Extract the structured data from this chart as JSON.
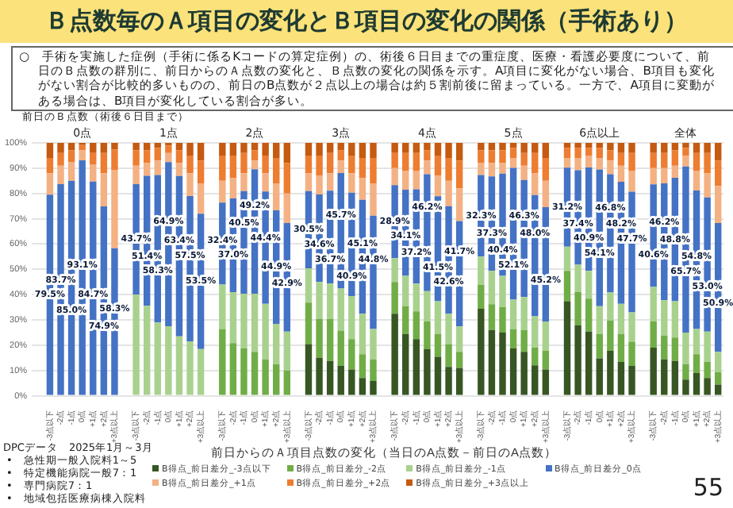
{
  "chart_data": {
    "type": "bar",
    "stacked": true,
    "title": "Ｂ点数毎のＡ項目の変化とＢ項目の変化の関係（手術あり）",
    "subtitle": "○　手術を実施した症例（手術に係るKコードの算定症例）の、術後６日目までの重症度、医療・看護必要度について、前日のＢ点数の群別に、前日からのＡ点数の変化と、Ｂ点数の変化の関係を示す。A項目に変化がない場合、B項目も変化がない割合が比較的多いものの、前日のB点数が２点以上の場合は約５割前後に留まっている。一方で、A項目に変動がある場合は、B項目が変化している割合が多い。",
    "xlabel": "前日からのＡ項目点数の変化（当日のA点数－前日のA点数）",
    "categories": [
      "-3点以下",
      "-2点",
      "-1点",
      "0点",
      "+1点",
      "+2点",
      "+3点以上",
      null,
      "-3点以下",
      "-2点",
      "-1点",
      "0点",
      "+1点",
      "+2点",
      "+3点以上",
      null,
      "-3点以下",
      "-2点",
      "-1点",
      "0点",
      "+1点",
      "+2点",
      "+3点以上",
      null,
      "-3点以下",
      "-2点",
      "-1点",
      "0点",
      "+1点",
      "+2点",
      "+3点以上",
      null,
      "-3点以下",
      "-2点",
      "-1点",
      "0点",
      "+1点",
      "+2点",
      "+3点以上",
      null,
      "-3点以下",
      "-2点",
      "-1点",
      "0点",
      "+1点",
      "+2点",
      "+3点以上",
      null,
      "-3点以下",
      "-2点",
      "-1点",
      "0点",
      "+1点",
      "+2点",
      "+3点以上",
      null,
      "-3点以下",
      "-2点",
      "-1点",
      "0点",
      "+1点",
      "+2点",
      "+3点以上"
    ],
    "series": [
      {
        "name": "B得点_前日差分_-3点以下",
        "color": "#375623",
        "values": [
          null,
          null,
          null,
          null,
          null,
          null,
          null,
          null,
          null,
          null,
          null,
          null,
          null,
          null,
          null,
          null,
          null,
          null,
          null,
          null,
          null,
          null,
          null,
          null,
          20.4,
          15,
          13.8,
          11.8,
          10.4,
          7,
          5.8,
          null,
          32.4,
          24.4,
          22.4,
          18.4,
          15.4,
          11.4,
          11,
          null,
          34.4,
          26,
          25,
          18.8,
          17.4,
          12,
          10.4,
          null,
          37.4,
          27.8,
          25.4,
          14.8,
          17.8,
          13.4,
          11.8,
          null,
          19,
          14.4,
          13.8,
          6.4,
          9,
          7,
          4.4
        ]
      },
      {
        "name": "B得点_前日差分_-2点",
        "color": "#70ad47",
        "values": [
          null,
          null,
          null,
          null,
          null,
          null,
          null,
          null,
          null,
          null,
          null,
          null,
          null,
          null,
          null,
          null,
          26.4,
          20.8,
          18.8,
          17.4,
          14.4,
          12.4,
          10,
          null,
          16.4,
          15.4,
          16.6,
          14,
          12,
          9.4,
          8.6,
          null,
          12.6,
          11,
          11,
          11,
          9,
          9,
          6.4,
          null,
          9.4,
          10.2,
          10,
          7.6,
          8.6,
          7,
          7.4,
          null,
          12,
          13.2,
          13,
          9.6,
          12,
          11,
          9.6,
          null,
          10.4,
          9.4,
          9.2,
          6,
          7.4,
          6.4,
          5
        ]
      },
      {
        "name": "B得点_前日差分_-1点",
        "color": "#a9d18e",
        "values": [
          null,
          null,
          null,
          null,
          null,
          null,
          null,
          null,
          40,
          35.6,
          29,
          27.5,
          23.5,
          21.5,
          18.5,
          null,
          17.6,
          20.2,
          21.6,
          23,
          22,
          16,
          15.4,
          null,
          13.6,
          14.6,
          14,
          16.6,
          17,
          16,
          12,
          null,
          9.4,
          12,
          11,
          12,
          13,
          12,
          10,
          null,
          11.2,
          13.2,
          12.4,
          11.6,
          13,
          12.4,
          11.6,
          null,
          9.6,
          10.8,
          11,
          11,
          11,
          12,
          11.6,
          null,
          13.6,
          14,
          14.4,
          12.6,
          10,
          12,
          8
        ]
      },
      {
        "name": "B得点_前日差分_0点",
        "color": "#4472c4",
        "values": [
          79.5,
          83.7,
          85,
          93.1,
          84.7,
          74.9,
          58.3,
          null,
          43.7,
          51.4,
          58.3,
          64.9,
          63.4,
          57.5,
          53.5,
          null,
          32.4,
          37,
          40.5,
          49.2,
          44.4,
          44.9,
          42.9,
          null,
          30.5,
          34.6,
          36.7,
          45.7,
          40.9,
          45.1,
          44.8,
          null,
          28.9,
          34.1,
          37.2,
          46.2,
          41.5,
          42.6,
          41.7,
          null,
          32.3,
          37.3,
          40.4,
          52.1,
          46.3,
          48,
          45.2,
          null,
          31.2,
          37.4,
          40.9,
          54.1,
          46.8,
          48.2,
          47.7,
          null,
          40.6,
          46.2,
          48.8,
          65.7,
          54.8,
          53,
          50.9
        ],
        "value_labels": [
          "79.5%",
          "83.7%",
          "85.0%",
          "93.1%",
          "84.7%",
          "74.9%",
          "58.3%",
          null,
          "43.7%",
          "51.4%",
          "58.3%",
          "64.9%",
          "63.4%",
          "57.5%",
          "53.5%",
          null,
          "32.4%",
          "37.0%",
          "40.5%",
          "49.2%",
          "44.4%",
          "44.9%",
          "42.9%",
          null,
          "30.5%",
          "34.6%",
          "36.7%",
          "45.7%",
          "40.9%",
          "45.1%",
          "44.8%",
          null,
          "28.9%",
          "34.1%",
          "37.2%",
          "46.2%",
          "41.5%",
          "42.6%",
          "41.7%",
          null,
          "32.3%",
          "37.3%",
          "40.4%",
          "52.1%",
          "46.3%",
          "48.0%",
          "45.2%",
          null,
          "31.2%",
          "37.4%",
          "40.9%",
          "54.1%",
          "46.8%",
          "48.2%",
          "47.7%",
          null,
          "40.6%",
          "46.2%",
          "48.8%",
          "65.7%",
          "54.8%",
          "53.0%",
          "50.9%"
        ]
      },
      {
        "name": "B得点_前日差分_+1点",
        "color": "#f4b183",
        "values": [
          8.5,
          7.3,
          7.5,
          4,
          6.8,
          13.1,
          31,
          null,
          7.3,
          5,
          5.7,
          3.6,
          5.1,
          9,
          12,
          null,
          8.6,
          8,
          7.1,
          3.4,
          7.2,
          10.7,
          11.7,
          null,
          7.1,
          7.4,
          6.9,
          4.9,
          7.7,
          8.5,
          12.8,
          null,
          6.7,
          7.5,
          7.4,
          5.4,
          8.1,
          10,
          12.9,
          null,
          4.7,
          5.3,
          4.2,
          3.9,
          5.7,
          8.6,
          10.4,
          null,
          3.8,
          4.8,
          4.7,
          4.5,
          5.4,
          6.4,
          8.3,
          null,
          6.4,
          6,
          4.8,
          4.3,
          7.8,
          9.6,
          14.7
        ]
      },
      {
        "name": "B得点_前日差分_+2点",
        "color": "#ed7d31",
        "values": [
          6,
          5,
          4.5,
          2,
          4.5,
          8,
          8,
          null,
          6,
          5,
          5,
          3,
          5,
          7,
          9,
          null,
          10,
          9,
          8,
          4,
          7,
          10,
          12,
          null,
          7,
          8,
          8,
          4,
          7,
          8,
          10,
          null,
          6,
          7,
          7,
          4,
          8,
          9,
          11,
          null,
          5,
          5,
          5,
          4,
          5,
          8,
          9,
          null,
          4,
          4,
          3,
          4,
          4,
          5,
          7,
          null,
          6,
          6,
          6,
          3,
          7,
          8,
          10
        ]
      },
      {
        "name": "B得点_前日差分_+3点以上",
        "color": "#c55a11",
        "values": [
          6,
          4,
          3,
          0.9,
          4,
          4,
          2.7,
          null,
          3,
          3,
          2,
          1,
          3,
          5,
          7,
          null,
          5,
          5,
          4,
          3,
          5,
          6,
          8,
          null,
          5,
          5,
          4,
          3,
          5,
          6,
          6,
          null,
          4,
          4,
          4,
          3,
          5,
          6,
          7,
          null,
          3,
          3,
          3,
          2,
          4,
          4,
          6,
          null,
          2,
          2,
          2,
          2,
          3,
          4,
          4,
          null,
          4,
          4,
          3,
          2,
          4,
          4,
          7
        ]
      }
    ],
    "ylim": [
      0,
      100
    ],
    "yticks": [
      {
        "value": 0,
        "label": "0%"
      },
      {
        "value": 10,
        "label": "10%"
      },
      {
        "value": 20,
        "label": "20%"
      },
      {
        "value": 30,
        "label": "30%"
      },
      {
        "value": 40,
        "label": "40%"
      },
      {
        "value": 50,
        "label": "50%"
      },
      {
        "value": 60,
        "label": "60%"
      },
      {
        "value": 70,
        "label": "70%"
      },
      {
        "value": 80,
        "label": "80%"
      },
      {
        "value": 90,
        "label": "90%"
      },
      {
        "value": 100,
        "label": "100%"
      }
    ],
    "grid": "y",
    "legend": "bottom",
    "annotations": [
      "前日のＢ点数（術後６日目まで）",
      "0点",
      "1点",
      "2点",
      "3点",
      "4点",
      "5点",
      "6点以上",
      "全体",
      "DPCデータ　2025年1月～3月",
      "•　急性期一般入院料1～5",
      "•　特定機能病院一般7：1",
      "•　専門病院7：1",
      "•　地域包括医療病棟入院料",
      "55"
    ]
  }
}
